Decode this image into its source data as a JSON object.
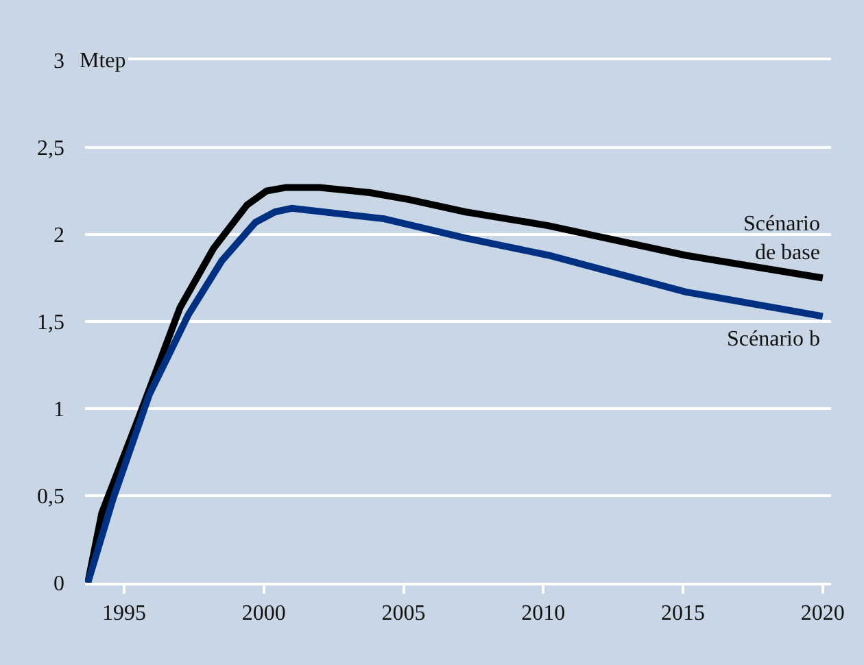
{
  "chart_data": {
    "type": "line",
    "ylabel": "Mtep",
    "xlim": [
      1993.6,
      2020.3
    ],
    "xticks": [
      1995,
      2000,
      2005,
      2010,
      2015,
      2020
    ],
    "ylim": [
      0,
      3
    ],
    "yticks": [
      0,
      {
        "value": 0.5,
        "label": "0,5"
      },
      1,
      {
        "value": 1.5,
        "label": "1,5"
      },
      2,
      {
        "value": 2.5,
        "label": "2,5"
      },
      3
    ],
    "grid": "y",
    "legend": false,
    "marker": "none",
    "line_style": "solid",
    "series": [
      {
        "name": "Scénario de base",
        "color": "#000000",
        "x": [
          1993.7,
          1994.2,
          1995.5,
          1997,
          1998.2,
          1999.4,
          2000.1,
          2000.8,
          2002,
          2003.8,
          2005.2,
          2007.2,
          2010.2,
          2015.1,
          2020
        ],
        "values": [
          0,
          0.4,
          0.94,
          1.58,
          1.92,
          2.17,
          2.25,
          2.27,
          2.27,
          2.24,
          2.2,
          2.13,
          2.05,
          1.88,
          1.75
        ]
      },
      {
        "name": "Scénario b",
        "color": "#003082",
        "x": [
          1993.7,
          1994.6,
          1995.9,
          1997.3,
          1998.5,
          1999.7,
          2000.4,
          2001,
          2004.3,
          2007.2,
          2010.2,
          2015.1,
          2020
        ],
        "values": [
          0,
          0.48,
          1.08,
          1.54,
          1.85,
          2.07,
          2.13,
          2.15,
          2.09,
          1.98,
          1.88,
          1.67,
          1.53
        ]
      }
    ]
  }
}
